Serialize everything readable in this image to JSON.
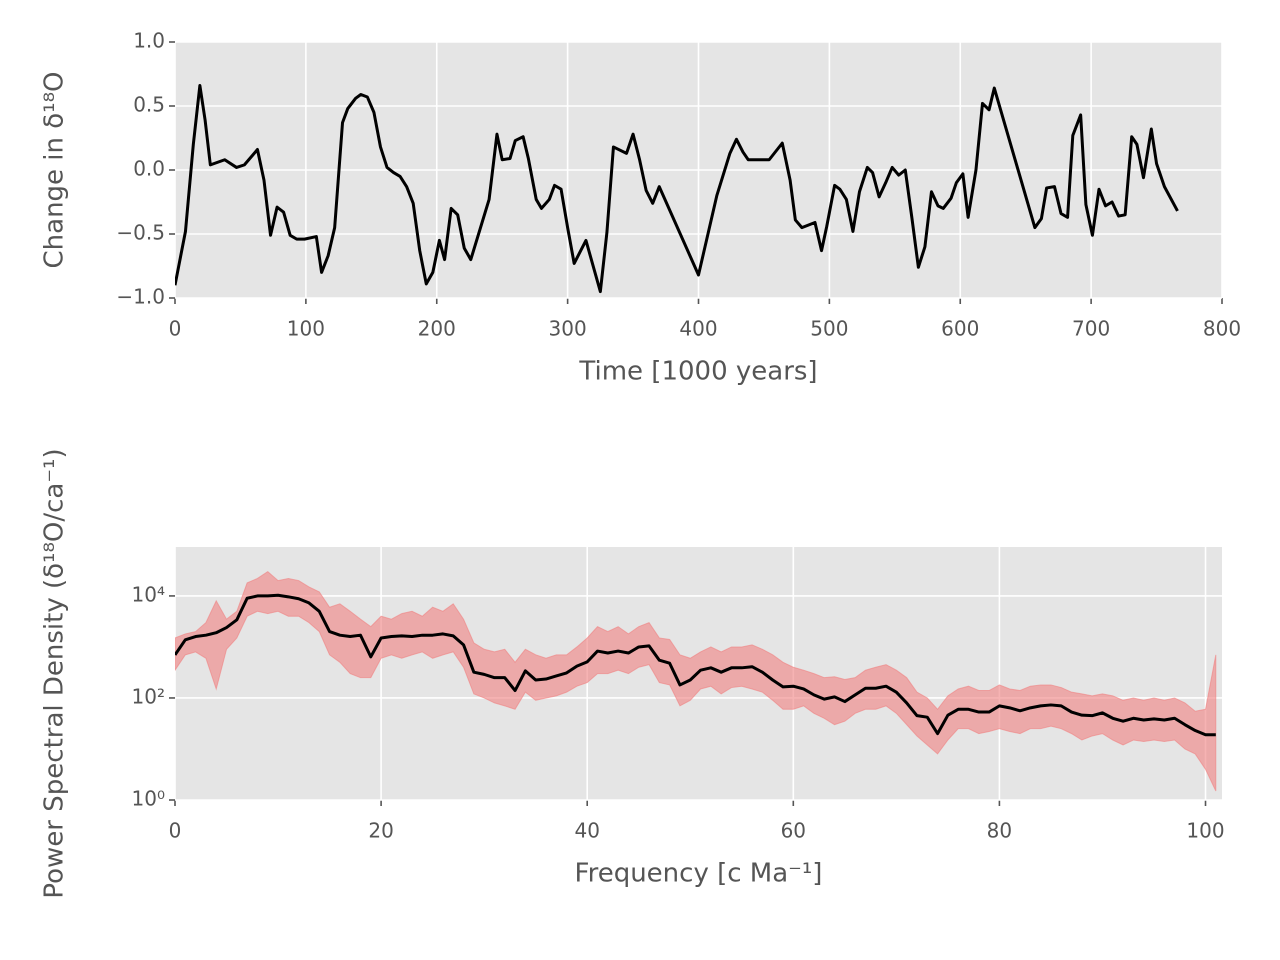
{
  "chart_data": [
    {
      "type": "line",
      "ylabel": "Change in δ¹⁸O",
      "xlabel": "Time [1000 years]",
      "color": "#000000",
      "x": [
        0,
        8,
        14,
        19,
        23,
        27,
        38,
        47,
        53,
        63,
        68,
        73,
        78,
        83,
        88,
        93,
        99,
        108,
        112,
        117,
        122,
        128,
        132,
        138,
        142,
        147,
        152,
        157,
        162,
        167,
        172,
        177,
        182,
        187,
        192,
        197,
        202,
        206,
        211,
        216,
        221,
        226,
        240,
        246,
        250,
        256,
        260,
        266,
        270,
        276,
        280,
        286,
        290,
        295,
        300,
        305,
        314,
        325,
        330,
        335,
        345,
        350,
        355,
        360,
        365,
        370,
        400,
        414,
        424,
        429,
        434,
        438,
        454,
        464,
        470,
        474,
        479,
        489,
        494,
        498,
        504,
        508,
        513,
        518,
        523,
        529,
        533,
        538,
        543,
        548,
        553,
        558,
        563,
        568,
        573,
        578,
        583,
        587,
        593,
        597,
        602,
        606,
        612,
        617,
        622,
        626,
        657,
        662,
        666,
        672,
        677,
        682,
        686,
        692,
        696,
        701,
        706,
        711,
        716,
        721,
        726,
        731,
        735,
        740,
        746,
        750,
        756,
        766
      ],
      "values": [
        -0.9,
        -0.48,
        0.2,
        0.66,
        0.39,
        0.04,
        0.08,
        0.02,
        0.04,
        0.16,
        -0.08,
        -0.51,
        -0.29,
        -0.33,
        -0.51,
        -0.54,
        -0.54,
        -0.52,
        -0.8,
        -0.67,
        -0.45,
        0.37,
        0.48,
        0.56,
        0.59,
        0.57,
        0.45,
        0.18,
        0.02,
        -0.02,
        -0.05,
        -0.13,
        -0.26,
        -0.63,
        -0.89,
        -0.8,
        -0.55,
        -0.7,
        -0.3,
        -0.35,
        -0.61,
        -0.7,
        -0.23,
        0.28,
        0.08,
        0.09,
        0.23,
        0.26,
        0.09,
        -0.23,
        -0.3,
        -0.23,
        -0.12,
        -0.15,
        -0.45,
        -0.73,
        -0.55,
        -0.95,
        -0.49,
        0.18,
        0.13,
        0.28,
        0.08,
        -0.16,
        -0.26,
        -0.13,
        -0.82,
        -0.2,
        0.13,
        0.24,
        0.14,
        0.08,
        0.08,
        0.21,
        -0.08,
        -0.39,
        -0.45,
        -0.41,
        -0.63,
        -0.44,
        -0.12,
        -0.15,
        -0.23,
        -0.48,
        -0.17,
        0.02,
        -0.02,
        -0.21,
        -0.1,
        0.02,
        -0.04,
        0,
        -0.37,
        -0.76,
        -0.6,
        -0.17,
        -0.28,
        -0.3,
        -0.22,
        -0.1,
        -0.03,
        -0.37,
        0,
        0.52,
        0.47,
        0.64,
        -0.45,
        -0.38,
        -0.14,
        -0.13,
        -0.34,
        -0.37,
        0.27,
        0.43,
        -0.27,
        -0.51,
        -0.15,
        -0.28,
        -0.25,
        -0.36,
        -0.35,
        0.26,
        0.2,
        -0.06,
        0.32,
        0.05,
        -0.13,
        -0.32
      ],
      "xlim": [
        0,
        800
      ],
      "xticks": [
        0,
        100,
        200,
        300,
        400,
        500,
        600,
        700,
        800
      ],
      "ylim": [
        -1,
        1
      ],
      "yticks": [
        {
          "value": -1,
          "label": "−1.0"
        },
        {
          "value": -0.5,
          "label": "−0.5"
        },
        {
          "value": 0,
          "label": "0.0"
        },
        0.5,
        {
          "value": 1,
          "label": "1.0"
        }
      ],
      "grid": true
    },
    {
      "type": "band_line",
      "ylabel": "Power Spectral Density (δ¹⁸O/ca⁻¹)",
      "xlabel": "Frequency [c Ma⁻¹]",
      "color": "#000000",
      "band_color": "#f08080",
      "log_y": true,
      "x": [
        0,
        1,
        2,
        3,
        4,
        5,
        6,
        7,
        8,
        9,
        10,
        11,
        12,
        13,
        14,
        15,
        16,
        17,
        18,
        19,
        20,
        21,
        22,
        23,
        24,
        25,
        26,
        27,
        28,
        29,
        30,
        31,
        32,
        33,
        34,
        35,
        36,
        37,
        38,
        39,
        40,
        41,
        42,
        43,
        44,
        45,
        46,
        47,
        48,
        49,
        50,
        51,
        52,
        53,
        54,
        55,
        56,
        57,
        58,
        59,
        60,
        61,
        62,
        63,
        64,
        65,
        66,
        67,
        68,
        69,
        70,
        71,
        72,
        73,
        74,
        75,
        76,
        77,
        78,
        79,
        80,
        81,
        82,
        83,
        84,
        85,
        86,
        87,
        88,
        89,
        90,
        91,
        92,
        93,
        94,
        95,
        96,
        97,
        98,
        99,
        100,
        101
      ],
      "values": [
        700,
        1380,
        1600,
        1700,
        1900,
        2400,
        3400,
        9000,
        10000,
        10000,
        10300,
        9600,
        8800,
        7300,
        5000,
        2000,
        1700,
        1600,
        1700,
        640,
        1500,
        1600,
        1650,
        1600,
        1700,
        1700,
        1800,
        1650,
        1100,
        320,
        290,
        250,
        250,
        140,
        340,
        225,
        235,
        270,
        310,
        420,
        510,
        830,
        760,
        830,
        760,
        1000,
        1050,
        550,
        480,
        180,
        225,
        350,
        390,
        320,
        390,
        390,
        410,
        320,
        225,
        165,
        170,
        150,
        115,
        95,
        105,
        85,
        115,
        155,
        155,
        170,
        130,
        80,
        45,
        42,
        20,
        46,
        60,
        60,
        53,
        53,
        70,
        64,
        56,
        64,
        70,
        73,
        70,
        53,
        46,
        45,
        51,
        40,
        35,
        40,
        37,
        39,
        37,
        40,
        30,
        23,
        19,
        19
      ],
      "upper": [
        1500,
        1800,
        2000,
        3000,
        8000,
        3500,
        5000,
        18000,
        22000,
        30000,
        20000,
        22000,
        20000,
        15000,
        12000,
        6000,
        7000,
        5000,
        3500,
        2500,
        4000,
        3500,
        4500,
        5000,
        4000,
        6000,
        5000,
        7000,
        3500,
        1200,
        900,
        800,
        900,
        500,
        900,
        700,
        600,
        700,
        700,
        1000,
        1500,
        2500,
        2000,
        2500,
        1800,
        2500,
        3000,
        1500,
        1400,
        700,
        600,
        800,
        1000,
        800,
        1000,
        1000,
        1100,
        900,
        700,
        500,
        400,
        350,
        300,
        250,
        260,
        230,
        250,
        350,
        400,
        450,
        350,
        250,
        130,
        100,
        60,
        110,
        150,
        170,
        140,
        140,
        180,
        150,
        140,
        170,
        180,
        180,
        160,
        130,
        120,
        110,
        120,
        110,
        90,
        100,
        90,
        100,
        90,
        100,
        80,
        55,
        60,
        700
      ],
      "lower": [
        350,
        700,
        800,
        600,
        150,
        900,
        1500,
        4000,
        5000,
        4500,
        5000,
        4000,
        4000,
        3000,
        2000,
        700,
        500,
        300,
        250,
        250,
        600,
        700,
        600,
        700,
        800,
        600,
        700,
        800,
        400,
        120,
        100,
        80,
        70,
        60,
        130,
        90,
        100,
        110,
        130,
        170,
        200,
        300,
        300,
        350,
        300,
        400,
        450,
        200,
        180,
        70,
        90,
        150,
        170,
        120,
        160,
        170,
        150,
        130,
        90,
        60,
        60,
        70,
        50,
        40,
        30,
        35,
        50,
        60,
        60,
        70,
        50,
        30,
        18,
        12,
        8,
        15,
        25,
        25,
        20,
        22,
        25,
        22,
        20,
        25,
        25,
        28,
        25,
        20,
        15,
        18,
        20,
        15,
        12,
        15,
        14,
        15,
        14,
        15,
        10,
        8,
        4,
        1.5
      ],
      "xlim": [
        0,
        101.6
      ],
      "xticks": [
        0,
        20,
        40,
        60,
        80,
        100
      ],
      "ylim": [
        1,
        91000
      ],
      "yticks": [
        {
          "value": 1,
          "label": "10⁰"
        },
        {
          "value": 100,
          "label": "10²"
        },
        {
          "value": 10000,
          "label": "10⁴"
        }
      ],
      "grid": true
    }
  ]
}
